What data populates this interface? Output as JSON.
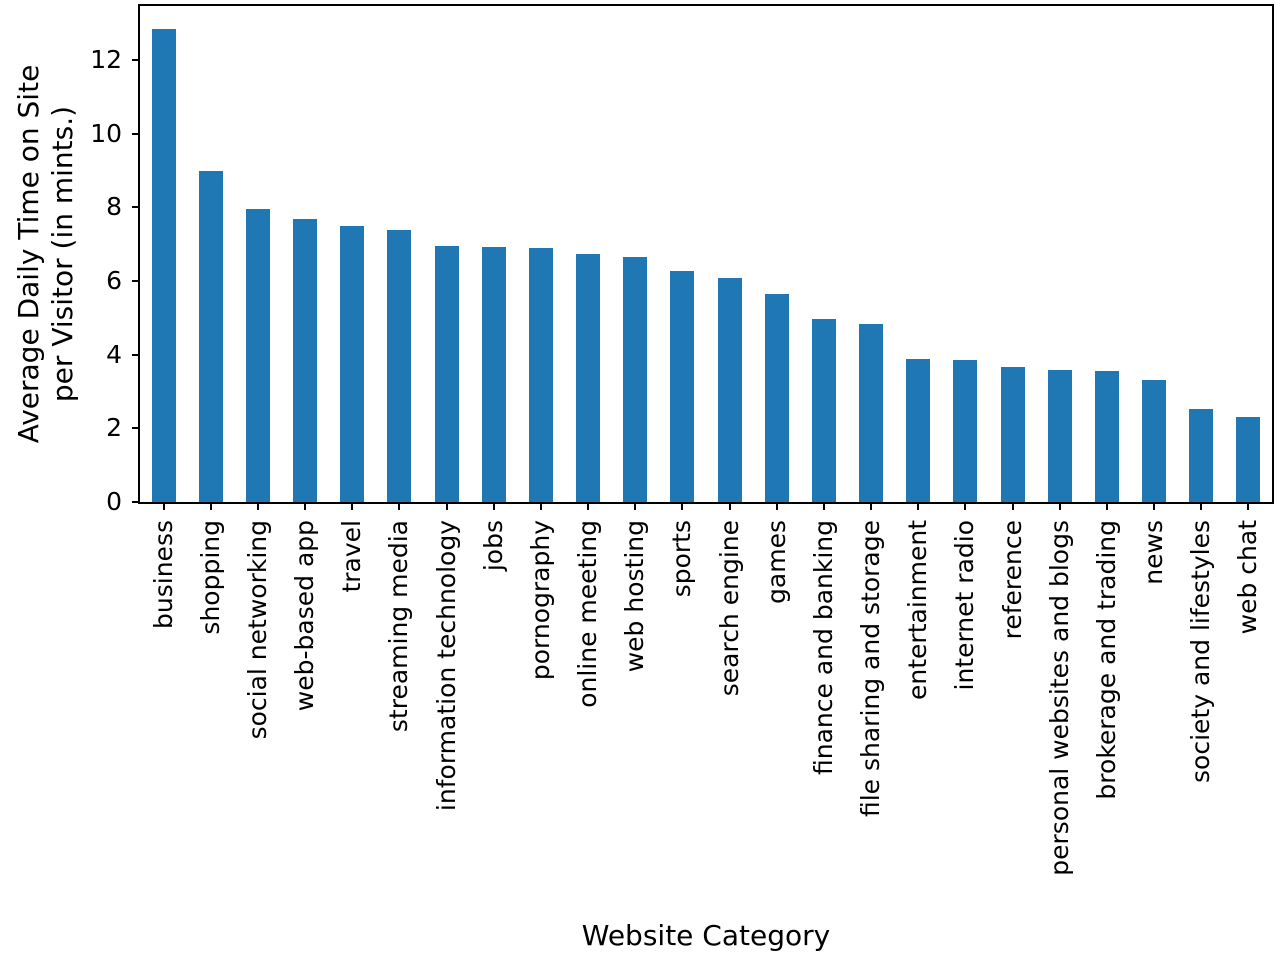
{
  "chart_data": {
    "type": "bar",
    "title": "",
    "xlabel": "Website Category",
    "ylabel": "Average Daily Time on Site per Visitor (in mints.)",
    "ylabel_lines": [
      "Average Daily Time on Site",
      "per Visitor (in mints.)"
    ],
    "categories": [
      "business",
      "shopping",
      "social networking",
      "web-based app",
      "travel",
      "streaming media",
      "information technology",
      "jobs",
      "pornography",
      "online meeting",
      "web hosting",
      "sports",
      "search engine",
      "games",
      "finance and banking",
      "file sharing and storage",
      "entertainment",
      "internet radio",
      "reference",
      "personal websites and blogs",
      "brokerage and trading",
      "news",
      "society and lifestyles",
      "web chat"
    ],
    "values": [
      12.84,
      8.97,
      7.95,
      7.68,
      7.49,
      7.38,
      6.95,
      6.91,
      6.88,
      6.73,
      6.65,
      6.28,
      6.08,
      5.65,
      4.97,
      4.84,
      3.88,
      3.85,
      3.67,
      3.59,
      3.56,
      3.3,
      2.52,
      2.3
    ],
    "yticks": [
      0,
      2,
      4,
      6,
      8,
      10,
      12
    ],
    "ylim": [
      0,
      13.46
    ],
    "grid": false,
    "legend_position": "none",
    "bar_color": "#1f77b4",
    "spine_color": "#000000",
    "text_color": "#000000",
    "background_color": "#ffffff"
  }
}
